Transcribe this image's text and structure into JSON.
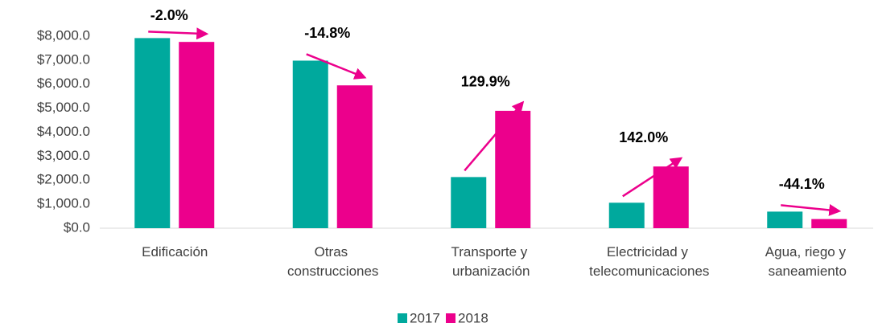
{
  "chart_data": {
    "type": "bar",
    "categories": [
      "Edificación",
      "Otras construcciones",
      "Transporte y urbanización",
      "Electricidad y telecomunicaciones",
      "Agua, riego y saneamiento"
    ],
    "series": [
      {
        "name": "2017",
        "color": "#00a99d",
        "values": [
          7920,
          6980,
          2130,
          1060,
          690
        ]
      },
      {
        "name": "2018",
        "color": "#ec008c",
        "values": [
          7760,
          5950,
          4890,
          2570,
          380
        ]
      }
    ],
    "annotations": [
      "-2.0%",
      "-14.8%",
      "129.9%",
      "142.0%",
      "-44.1%"
    ],
    "ylim": [
      0,
      8000
    ],
    "yticks": [
      {
        "value": 0,
        "label": "$0.0"
      },
      {
        "value": 1000,
        "label": "$1,000.0"
      },
      {
        "value": 2000,
        "label": "$2,000.0"
      },
      {
        "value": 3000,
        "label": "$3,000.0"
      },
      {
        "value": 4000,
        "label": "$4,000.0"
      },
      {
        "value": 5000,
        "label": "$5,000.0"
      },
      {
        "value": 6000,
        "label": "$6,000.0"
      },
      {
        "value": 7000,
        "label": "$7,000.0"
      },
      {
        "value": 8000,
        "label": "$8,000.0"
      }
    ],
    "legend": "bottom"
  }
}
